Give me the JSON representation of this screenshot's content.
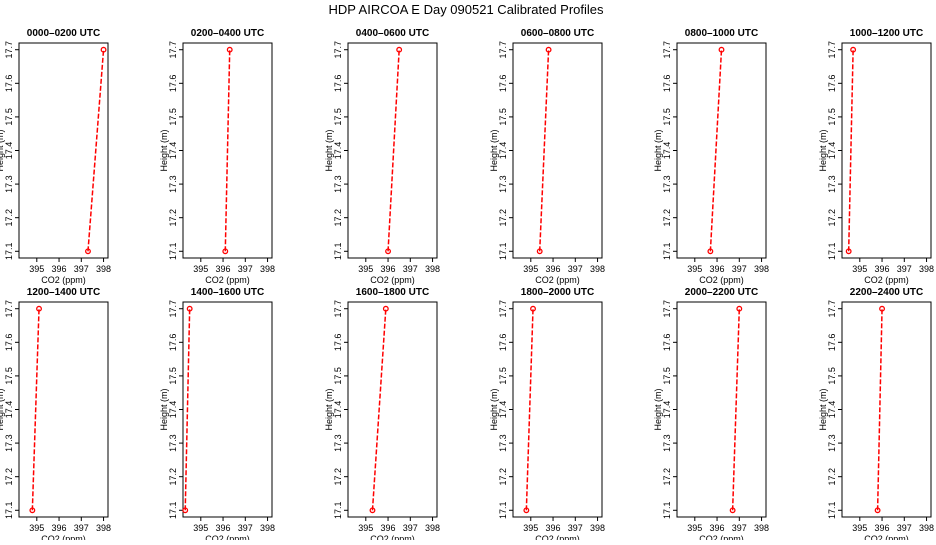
{
  "title": "HDP AIRCOA E  Day 090521  Calibrated Profiles",
  "chart_data": {
    "type": "line",
    "title": "HDP AIRCOA E  Day 090521  Calibrated Profiles",
    "xlabel": "CO2 (ppm)",
    "ylabel": "Height (m)",
    "xlim": [
      394.2,
      398.2
    ],
    "ylim": [
      17.08,
      17.72
    ],
    "xticks": [
      395,
      396,
      397,
      398
    ],
    "yticks": [
      17.1,
      17.2,
      17.3,
      17.4,
      17.5,
      17.6,
      17.7
    ],
    "xtick_labels": [
      "395",
      "396",
      "397",
      "398"
    ],
    "ytick_labels": [
      "17.1",
      "17.2",
      "17.3",
      "17.4",
      "17.5",
      "17.6",
      "17.7"
    ],
    "series_color": "#ff0000",
    "panels": [
      {
        "title": "0000–0200 UTC",
        "points": [
          {
            "x": 397.3,
            "y": 17.1
          },
          {
            "x": 398.0,
            "y": 17.7
          }
        ]
      },
      {
        "title": "0200–0400 UTC",
        "points": [
          {
            "x": 396.1,
            "y": 17.1
          },
          {
            "x": 396.3,
            "y": 17.7
          }
        ]
      },
      {
        "title": "0400–0600 UTC",
        "points": [
          {
            "x": 396.0,
            "y": 17.1
          },
          {
            "x": 396.5,
            "y": 17.7
          }
        ]
      },
      {
        "title": "0600–0800 UTC",
        "points": [
          {
            "x": 395.4,
            "y": 17.1
          },
          {
            "x": 395.8,
            "y": 17.7
          }
        ]
      },
      {
        "title": "0800–1000 UTC",
        "points": [
          {
            "x": 395.7,
            "y": 17.1
          },
          {
            "x": 396.2,
            "y": 17.7
          }
        ]
      },
      {
        "title": "1000–1200 UTC",
        "points": [
          {
            "x": 394.5,
            "y": 17.1
          },
          {
            "x": 394.7,
            "y": 17.7
          }
        ]
      },
      {
        "title": "1200–1400 UTC",
        "points": [
          {
            "x": 394.8,
            "y": 17.1
          },
          {
            "x": 395.1,
            "y": 17.7
          }
        ]
      },
      {
        "title": "1400–1600 UTC",
        "points": [
          {
            "x": 394.3,
            "y": 17.1
          },
          {
            "x": 394.5,
            "y": 17.7
          }
        ]
      },
      {
        "title": "1600–1800 UTC",
        "points": [
          {
            "x": 395.3,
            "y": 17.1
          },
          {
            "x": 395.9,
            "y": 17.7
          }
        ]
      },
      {
        "title": "1800–2000 UTC",
        "points": [
          {
            "x": 394.8,
            "y": 17.1
          },
          {
            "x": 395.1,
            "y": 17.7
          }
        ]
      },
      {
        "title": "2000–2200 UTC",
        "points": [
          {
            "x": 396.7,
            "y": 17.1
          },
          {
            "x": 397.0,
            "y": 17.7
          }
        ]
      },
      {
        "title": "2200–2400 UTC",
        "points": [
          {
            "x": 395.8,
            "y": 17.1
          },
          {
            "x": 396.0,
            "y": 17.7
          }
        ]
      }
    ]
  }
}
